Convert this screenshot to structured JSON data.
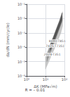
{
  "chart_data": {
    "type": "band",
    "xlabel": "ΔK (MPa√m)",
    "ylabel": "da/dN (mm/cycle)",
    "subtitle": "R = – 0.01",
    "log": true,
    "grid": true,
    "xlim": [
      1,
      100
    ],
    "ylim": [
      1e-06,
      0.1
    ],
    "xticks": [
      {
        "value": 1,
        "label": "10⁰"
      },
      {
        "value": 10,
        "label": "10¹"
      },
      {
        "value": 100,
        "label": "10²"
      }
    ],
    "yticks": [
      {
        "value": 1e-06,
        "label": "10⁻⁶"
      },
      {
        "value": 1e-05,
        "label": "10⁻⁵"
      },
      {
        "value": 0.0001,
        "label": "10⁻⁴"
      },
      {
        "value": 0.001,
        "label": "10⁻³"
      },
      {
        "value": 0.01,
        "label": "10⁻²"
      },
      {
        "value": 0.1,
        "label": "10⁻¹"
      }
    ],
    "series": [
      {
        "color": "#bbbbbb",
        "x": [
          10,
          14,
          20,
          30,
          45,
          65,
          80
        ],
        "low": [
          3e-06,
          8e-06,
          2.5e-05,
          8e-05,
          0.0003,
          0.001,
          0.003
        ],
        "high": [
          2e-05,
          7e-05,
          0.00025,
          0.0008,
          0.003,
          0.01,
          0.03
        ]
      },
      {
        "color": "#888888",
        "x": [
          12,
          18,
          26,
          38,
          55,
          75
        ],
        "low": [
          1e-05,
          4e-05,
          0.00015,
          0.0005,
          0.002,
          0.006
        ],
        "high": [
          3e-05,
          0.00012,
          0.0004,
          0.0015,
          0.005,
          0.015
        ]
      },
      {
        "color": "#444444",
        "x": [
          18,
          26,
          38,
          55,
          75
        ],
        "low": [
          6e-05,
          0.0002,
          0.0007,
          0.0025,
          0.008
        ],
        "high": [
          0.00015,
          0.0005,
          0.002,
          0.007,
          0.025
        ]
      }
    ],
    "annotations": [
      {
        "text": "7475-T7351",
        "x": 9.5,
        "y": 0.00012
      },
      {
        "text": "2024-T351",
        "x": 7.5,
        "y": 3e-05
      },
      {
        "text": "8090-T851",
        "x": 42,
        "y": 0.00018
      }
    ]
  }
}
